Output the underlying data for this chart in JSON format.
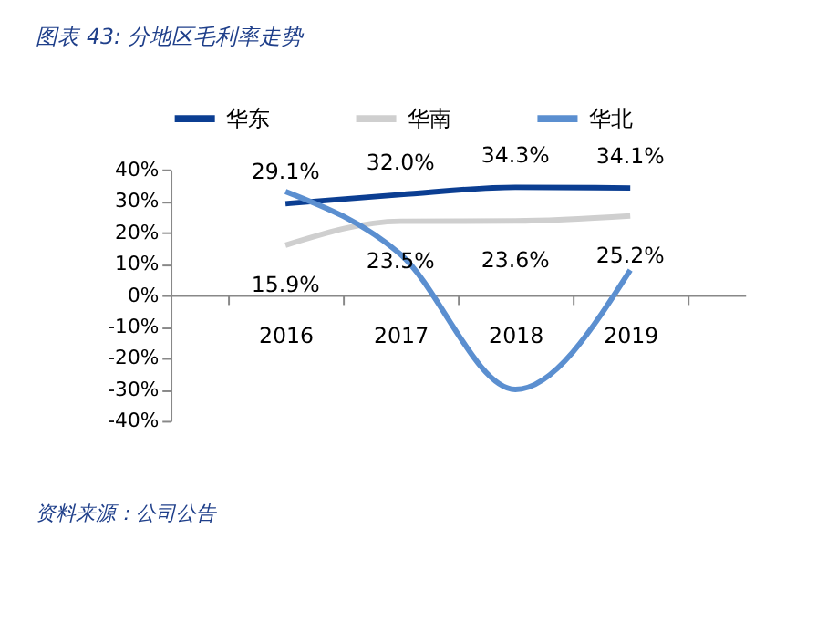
{
  "chart_data": {
    "type": "line",
    "title": "图表 43: 分地区毛利率走势",
    "categories": [
      "2016",
      "2017",
      "2018",
      "2019"
    ],
    "series": [
      {
        "name": "华东",
        "color": "#0b3e92",
        "values": [
          29.1,
          32.0,
          34.3,
          34.1
        ],
        "value_labels": [
          "29.1%",
          "32.0%",
          "34.3%",
          "34.1%"
        ]
      },
      {
        "name": "华南",
        "color": "#cfcfcf",
        "values": [
          15.9,
          23.5,
          23.6,
          25.2
        ],
        "value_labels": [
          "15.9%",
          "23.5%",
          "23.6%",
          "25.2%"
        ]
      },
      {
        "name": "华北",
        "color": "#5b8fd0",
        "values": [
          33,
          13,
          -30,
          8
        ]
      }
    ],
    "ylim": [
      -40,
      40
    ],
    "yticks": [
      {
        "value": 40,
        "label": "40%"
      },
      {
        "value": 30,
        "label": "30%"
      },
      {
        "value": 20,
        "label": "20%"
      },
      {
        "value": 10,
        "label": "10%"
      },
      {
        "value": 0,
        "label": "0%"
      },
      {
        "value": -10,
        "label": "-10%"
      },
      {
        "value": -20,
        "label": "-20%"
      },
      {
        "value": -30,
        "label": "-30%"
      },
      {
        "value": -40,
        "label": "-40%"
      }
    ],
    "legend": "top",
    "grid": false,
    "marker": "none",
    "line_style": "solid",
    "annotations": [
      "资料来源：公司公告"
    ]
  }
}
